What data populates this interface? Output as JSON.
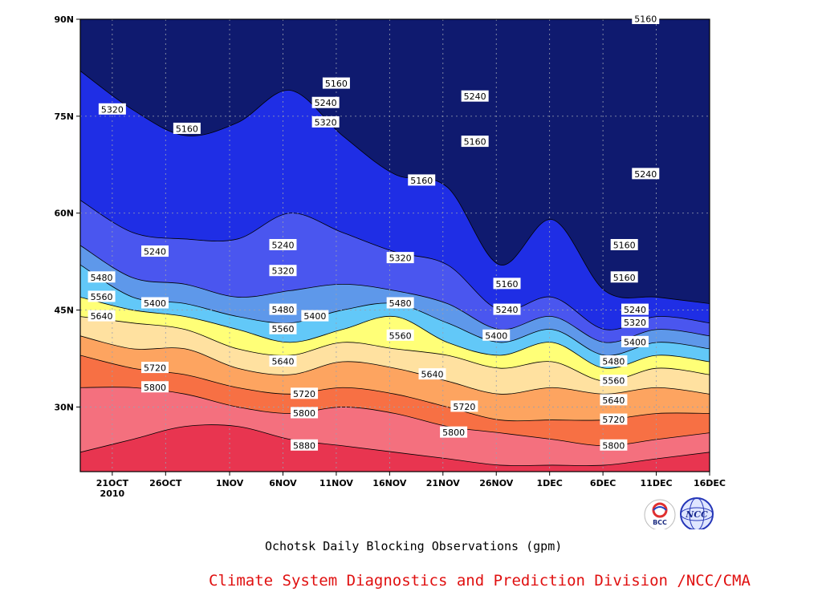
{
  "caption": "Ochotsk Daily Blocking Observations (gpm)",
  "credit": "Climate System Diagnostics and Prediction Division /NCC/CMA",
  "logos": [
    {
      "icon": "bcc-logo",
      "text": "BCC"
    },
    {
      "icon": "ncc-logo",
      "text": "NCC"
    }
  ],
  "chart_data": {
    "type": "contour",
    "title": "Ochotsk Daily Blocking Observations (gpm)",
    "xlabel": "",
    "ylabel": "",
    "units": "gpm",
    "x_range": [
      "2010-10-18",
      "2010-12-16"
    ],
    "y_range": [
      20,
      90
    ],
    "y_ticks": [
      {
        "value": 90,
        "label": "90N"
      },
      {
        "value": 75,
        "label": "75N"
      },
      {
        "value": 60,
        "label": "60N"
      },
      {
        "value": 45,
        "label": "45N"
      },
      {
        "value": 30,
        "label": "30N"
      }
    ],
    "x_ticks": [
      {
        "date": "2010-10-21",
        "label": "21OCT",
        "sublabel": "2010"
      },
      {
        "date": "2010-10-26",
        "label": "26OCT"
      },
      {
        "date": "2010-11-01",
        "label": "1NOV"
      },
      {
        "date": "2010-11-06",
        "label": "6NOV"
      },
      {
        "date": "2010-11-11",
        "label": "11NOV"
      },
      {
        "date": "2010-11-16",
        "label": "16NOV"
      },
      {
        "date": "2010-11-21",
        "label": "21NOV"
      },
      {
        "date": "2010-11-26",
        "label": "26NOV"
      },
      {
        "date": "2010-12-01",
        "label": "1DEC"
      },
      {
        "date": "2010-12-06",
        "label": "6DEC"
      },
      {
        "date": "2010-12-11",
        "label": "11DEC"
      },
      {
        "date": "2010-12-16",
        "label": "16DEC"
      }
    ],
    "grid": true,
    "levels": [
      5160,
      5240,
      5320,
      5400,
      5480,
      5560,
      5640,
      5720,
      5800,
      5880
    ],
    "level_colors": [
      "#0f1a6f",
      "#1f2ee5",
      "#4a56ef",
      "#5e98ea",
      "#62c8f8",
      "#ffff77",
      "#ffe1a0",
      "#fda460",
      "#f77044",
      "#f4707e",
      "#e83550"
    ],
    "contours": [
      {
        "level": 5880,
        "lat": [
          23,
          25,
          27,
          27,
          25,
          24,
          23,
          22,
          21,
          21,
          21,
          22,
          23
        ]
      },
      {
        "level": 5800,
        "lat": [
          33,
          33,
          32,
          30,
          29,
          30,
          29,
          27,
          26,
          25,
          24,
          25,
          26
        ]
      },
      {
        "level": 5720,
        "lat": [
          38,
          36,
          35,
          33,
          32,
          33,
          32,
          30,
          28,
          28,
          28,
          29,
          29
        ]
      },
      {
        "level": 5640,
        "lat": [
          41,
          39,
          39,
          36,
          35,
          37,
          36,
          34,
          32,
          33,
          32,
          33,
          32
        ]
      },
      {
        "level": 5560,
        "lat": [
          44,
          43,
          42,
          39,
          38,
          40,
          39,
          38,
          36,
          37,
          34,
          36,
          35
        ]
      },
      {
        "level": 5480,
        "lat": [
          47,
          45,
          44,
          42,
          40,
          42,
          44,
          40,
          38,
          40,
          36,
          38,
          37
        ]
      },
      {
        "level": 5400,
        "lat": [
          52,
          47,
          46,
          44,
          43,
          45,
          46,
          43,
          40,
          42,
          38,
          40,
          39
        ]
      },
      {
        "level": 5320,
        "lat": [
          55,
          50,
          49,
          47,
          48,
          49,
          48,
          46,
          42,
          44,
          40,
          42,
          41
        ]
      },
      {
        "level": 5240,
        "lat": [
          62,
          57,
          56,
          56,
          60,
          57,
          54,
          52,
          45,
          47,
          42,
          44,
          43
        ]
      },
      {
        "level": 5160,
        "lat": [
          82,
          76,
          72,
          74,
          79,
          72,
          66,
          64,
          52,
          59,
          48,
          47,
          46
        ]
      }
    ],
    "contour_labels": [
      {
        "text": "5320",
        "date": "2010-10-21",
        "lat": 76
      },
      {
        "text": "5160",
        "date": "2010-10-28",
        "lat": 73
      },
      {
        "text": "5160",
        "date": "2010-11-11",
        "lat": 80
      },
      {
        "text": "5240",
        "date": "2010-11-10",
        "lat": 77
      },
      {
        "text": "5320",
        "date": "2010-11-10",
        "lat": 74
      },
      {
        "text": "5240",
        "date": "2010-11-24",
        "lat": 78
      },
      {
        "text": "5160",
        "date": "2010-11-24",
        "lat": 71
      },
      {
        "text": "5160",
        "date": "2010-11-19",
        "lat": 65
      },
      {
        "text": "5240",
        "date": "2010-12-10",
        "lat": 66
      },
      {
        "text": "5160",
        "date": "2010-12-10",
        "lat": 90
      },
      {
        "text": "5240",
        "date": "2010-10-25",
        "lat": 54
      },
      {
        "text": "5240",
        "date": "2010-11-06",
        "lat": 55
      },
      {
        "text": "5320",
        "date": "2010-11-06",
        "lat": 51
      },
      {
        "text": "5320",
        "date": "2010-11-17",
        "lat": 53
      },
      {
        "text": "5160",
        "date": "2010-11-27",
        "lat": 49
      },
      {
        "text": "5160",
        "date": "2010-12-08",
        "lat": 55
      },
      {
        "text": "5160",
        "date": "2010-12-08",
        "lat": 50
      },
      {
        "text": "5480",
        "date": "2010-10-20",
        "lat": 50
      },
      {
        "text": "5560",
        "date": "2010-10-20",
        "lat": 47
      },
      {
        "text": "5640",
        "date": "2010-10-20",
        "lat": 44
      },
      {
        "text": "5400",
        "date": "2010-10-25",
        "lat": 46
      },
      {
        "text": "5720",
        "date": "2010-10-25",
        "lat": 36
      },
      {
        "text": "5800",
        "date": "2010-10-25",
        "lat": 33
      },
      {
        "text": "5480",
        "date": "2010-11-06",
        "lat": 45
      },
      {
        "text": "5560",
        "date": "2010-11-06",
        "lat": 42
      },
      {
        "text": "5640",
        "date": "2010-11-06",
        "lat": 37
      },
      {
        "text": "5400",
        "date": "2010-11-09",
        "lat": 44
      },
      {
        "text": "5720",
        "date": "2010-11-08",
        "lat": 32
      },
      {
        "text": "5800",
        "date": "2010-11-08",
        "lat": 29
      },
      {
        "text": "5880",
        "date": "2010-11-08",
        "lat": 24
      },
      {
        "text": "5480",
        "date": "2010-11-17",
        "lat": 46
      },
      {
        "text": "5560",
        "date": "2010-11-17",
        "lat": 41
      },
      {
        "text": "5640",
        "date": "2010-11-20",
        "lat": 35
      },
      {
        "text": "5720",
        "date": "2010-11-23",
        "lat": 30
      },
      {
        "text": "5800",
        "date": "2010-11-22",
        "lat": 26
      },
      {
        "text": "5240",
        "date": "2010-11-27",
        "lat": 45
      },
      {
        "text": "5400",
        "date": "2010-11-26",
        "lat": 41
      },
      {
        "text": "5240",
        "date": "2010-12-09",
        "lat": 45
      },
      {
        "text": "5320",
        "date": "2010-12-09",
        "lat": 43
      },
      {
        "text": "5400",
        "date": "2010-12-09",
        "lat": 40
      },
      {
        "text": "5480",
        "date": "2010-12-07",
        "lat": 37
      },
      {
        "text": "5560",
        "date": "2010-12-07",
        "lat": 34
      },
      {
        "text": "5640",
        "date": "2010-12-07",
        "lat": 31
      },
      {
        "text": "5720",
        "date": "2010-12-07",
        "lat": 28
      },
      {
        "text": "5800",
        "date": "2010-12-07",
        "lat": 24
      }
    ]
  }
}
